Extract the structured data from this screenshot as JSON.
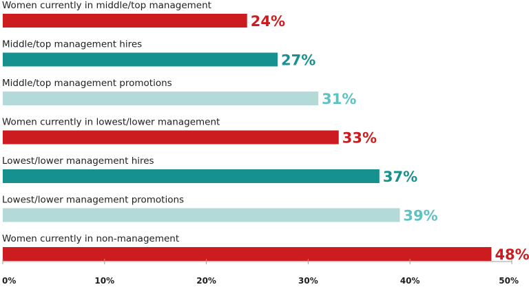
{
  "chart_data": {
    "type": "bar",
    "orientation": "horizontal",
    "categories": [
      "Women currently in middle/top management",
      "Middle/top management hires",
      "Middle/top management promotions",
      "Women currently in lowest/lower management",
      "Lowest/lower management hires",
      "Lowest/lower management promotions",
      "Women currently in non-management"
    ],
    "values": [
      24,
      27,
      31,
      33,
      37,
      39,
      48
    ],
    "value_labels": [
      "24%",
      "27%",
      "31%",
      "33%",
      "37%",
      "39%",
      "48%"
    ],
    "bar_colors": [
      "#cc1c1f",
      "#16918f",
      "#b3d9d9",
      "#cc1c1f",
      "#16918f",
      "#b3d9d9",
      "#cc1c1f"
    ],
    "label_colors": [
      "#cc1c1f",
      "#16918f",
      "#5cc2c2",
      "#cc1c1f",
      "#16918f",
      "#5cc2c2",
      "#cc1c1f"
    ],
    "xlim": [
      0,
      50
    ],
    "xticks": [
      0,
      10,
      20,
      30,
      40,
      50
    ],
    "xtick_labels": [
      "0%",
      "10%",
      "20%",
      "30%",
      "40%",
      "50%"
    ],
    "grid": false,
    "axis_color": "#9e9e9e"
  }
}
